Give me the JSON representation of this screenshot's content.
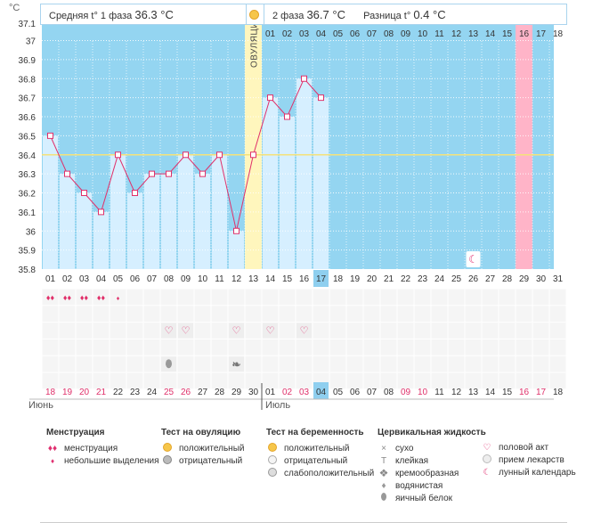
{
  "header": {
    "phase1_label": "Средняя t° 1 фаза",
    "phase1_value": "36.3 °C",
    "phase2_label": "2 фаза",
    "phase2_value": "36.7 °C",
    "diff_label": "Разница t°",
    "diff_value": "0.4 °C",
    "unit": "°C"
  },
  "chart_data": {
    "type": "line",
    "ylabel": "°C",
    "ylim": [
      35.8,
      37.1
    ],
    "y_ticks": [
      "37.1",
      "37",
      "36.9",
      "36.8",
      "36.7",
      "36.6",
      "36.5",
      "36.4",
      "36.3",
      "36.2",
      "36.1",
      "36",
      "35.9",
      "35.8"
    ],
    "cycle_days": [
      "01",
      "02",
      "03",
      "04",
      "05",
      "06",
      "07",
      "08",
      "09",
      "10",
      "11",
      "12",
      "13",
      "14",
      "15",
      "16",
      "17",
      "18",
      "19",
      "20",
      "21",
      "22",
      "23",
      "24",
      "25",
      "26",
      "27",
      "28",
      "29",
      "30",
      "31"
    ],
    "top_days": [
      "01",
      "02",
      "03",
      "04",
      "05",
      "06",
      "07",
      "08",
      "09",
      "10",
      "11",
      "12",
      "13",
      "14",
      "15",
      "16",
      "17",
      "18"
    ],
    "calendar_dates": [
      "18",
      "19",
      "20",
      "21",
      "22",
      "23",
      "24",
      "25",
      "26",
      "27",
      "28",
      "29",
      "30",
      "01",
      "02",
      "03",
      "04",
      "05",
      "06",
      "07",
      "08",
      "09",
      "10",
      "11",
      "12",
      "13",
      "14",
      "15",
      "16",
      "17",
      "18"
    ],
    "red_dates_idx": [
      0,
      1,
      2,
      3,
      7,
      8,
      14,
      15,
      21,
      22,
      28,
      29
    ],
    "months": [
      {
        "label": "Июнь",
        "start": 0
      },
      {
        "label": "Июль",
        "start": 13
      }
    ],
    "ovulation_label": "ОВУЛЯЦИЯ",
    "ovulation_day": 13,
    "current_day": 17,
    "period_end_day": 29,
    "coverline": 36.4,
    "temperatures": [
      36.5,
      36.3,
      36.2,
      36.1,
      36.4,
      36.2,
      36.3,
      36.3,
      36.4,
      36.3,
      36.4,
      36.0,
      36.4,
      36.7,
      36.6,
      36.8,
      36.7
    ],
    "menstruation": [
      2,
      3,
      3,
      3,
      1
    ],
    "intercourse_days": [
      8,
      9,
      12,
      14,
      16
    ],
    "ovulation_test_negative_days": [
      8
    ],
    "creamy_fluid_days": [
      12
    ],
    "moon_day": 26
  },
  "legend": {
    "menstruation": {
      "title": "Менструация",
      "items": [
        "менструация",
        "небольшие выделения"
      ]
    },
    "ovulation_test": {
      "title": "Тест на овуляцию",
      "items": [
        "положительный",
        "отрицательный"
      ]
    },
    "pregnancy_test": {
      "title": "Тест на беременность",
      "items": [
        "положительный",
        "отрицательный",
        "слабоположительный"
      ]
    },
    "cervical_fluid": {
      "title": "Цервикальная жидкость",
      "items": [
        "сухо",
        "клейкая",
        "кремообразная",
        "водянистая",
        "яичный белок"
      ]
    },
    "other": {
      "items": [
        "половой акт",
        "прием лекарств",
        "лунный календарь"
      ]
    }
  }
}
